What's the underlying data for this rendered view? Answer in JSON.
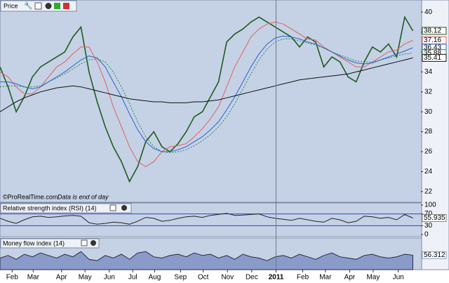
{
  "chart_data": [
    {
      "type": "line",
      "title": "Price",
      "annotations": [
        "©ProRealTime.com",
        "Data is end of day"
      ],
      "xlim": [
        0,
        52
      ],
      "xticks": [
        {
          "value": 1.5,
          "label": "Feb"
        },
        {
          "value": 4.1,
          "label": "Mar"
        },
        {
          "value": 7.6,
          "label": "Apr"
        },
        {
          "value": 10.5,
          "label": "May"
        },
        {
          "value": 13.5,
          "label": "Jun"
        },
        {
          "value": 16.4,
          "label": "Jul"
        },
        {
          "value": 19.1,
          "label": "Aug"
        },
        {
          "value": 22.3,
          "label": "Sep"
        },
        {
          "value": 25.1,
          "label": "Oct"
        },
        {
          "value": 28.1,
          "label": "Nov"
        },
        {
          "value": 31.1,
          "label": "Dec"
        },
        {
          "value": 34.1,
          "label": "2011"
        },
        {
          "value": 37.4,
          "label": "Feb"
        },
        {
          "value": 40.2,
          "label": "Mar"
        },
        {
          "value": 43.2,
          "label": "Apr"
        },
        {
          "value": 46.1,
          "label": "May"
        },
        {
          "value": 49.2,
          "label": "Jun"
        }
      ],
      "ylim": [
        21,
        41
      ],
      "yticks": [
        22,
        24,
        26,
        28,
        30,
        32,
        34,
        36,
        38,
        40
      ],
      "series": [
        {
          "color": "#1f5a1f",
          "values": [
            34.5,
            32.5,
            30,
            31.5,
            33.5,
            34.5,
            35,
            35.5,
            36,
            37.5,
            38.5,
            34,
            31,
            28.5,
            26.5,
            25,
            23,
            24.5,
            27,
            28,
            26.5,
            26,
            26.8,
            28,
            29.5,
            30,
            31.5,
            33,
            37,
            37.8,
            38.3,
            39,
            39.5,
            39,
            38.5,
            38,
            37.5,
            36.5,
            37.5,
            37,
            34.5,
            35.5,
            35,
            33.5,
            33,
            35,
            36.5,
            36,
            36.8,
            35.5,
            39.5,
            38.12
          ]
        },
        {
          "color": "#e06060",
          "values": [
            34,
            33.5,
            32.5,
            31.8,
            31.8,
            32.5,
            33.5,
            34.5,
            35,
            35.8,
            36.5,
            36.5,
            35,
            33,
            30.5,
            28.5,
            26.5,
            25,
            24.5,
            25,
            26,
            26.5,
            26.6,
            26.8,
            27.5,
            28.3,
            29.3,
            30.5,
            32.5,
            34.5,
            36,
            37.5,
            38.3,
            38.8,
            39,
            38.8,
            38.3,
            37.8,
            37.3,
            37.2,
            36.5,
            36,
            35.5,
            35,
            34.5,
            34.5,
            35,
            35.5,
            36,
            36.2,
            36.8,
            37.16
          ]
        },
        {
          "color": "#2f5fd0",
          "values": [
            33,
            33,
            32.8,
            32.5,
            32.3,
            32.5,
            33,
            33.5,
            34,
            34.6,
            35.2,
            35.6,
            35.4,
            34.5,
            33,
            31.5,
            29.8,
            28.2,
            27,
            26.3,
            26,
            26,
            26.2,
            26.5,
            27,
            27.5,
            28.2,
            29,
            30.2,
            31.5,
            33,
            34.5,
            35.8,
            36.8,
            37.4,
            37.6,
            37.5,
            37.3,
            37,
            36.8,
            36.4,
            36,
            35.6,
            35.2,
            34.9,
            34.8,
            34.9,
            35.2,
            35.5,
            35.8,
            36.1,
            36.43
          ]
        },
        {
          "color": "#1e8a4a",
          "values": [
            32.5,
            32.6,
            32.6,
            32.5,
            32.5,
            32.6,
            33,
            33.4,
            33.8,
            34.3,
            34.8,
            35.2,
            35.3,
            35,
            34,
            32.5,
            30.8,
            29,
            27.5,
            26.5,
            26,
            25.9,
            26,
            26.2,
            26.6,
            27.1,
            27.7,
            28.5,
            29.5,
            30.8,
            32.3,
            33.8,
            35.2,
            36.3,
            37,
            37.3,
            37.3,
            37.1,
            36.9,
            36.7,
            36.4,
            36,
            35.7,
            35.4,
            35.1,
            35,
            35,
            35.2,
            35.4,
            35.6,
            35.8,
            35.88
          ]
        },
        {
          "color": "#111111",
          "values": [
            30,
            30.5,
            31,
            31.4,
            31.7,
            32,
            32.2,
            32.4,
            32.5,
            32.6,
            32.5,
            32.3,
            32.1,
            31.9,
            31.7,
            31.5,
            31.3,
            31.2,
            31.1,
            31,
            31,
            30.9,
            30.9,
            30.9,
            31,
            31,
            31.1,
            31.2,
            31.4,
            31.6,
            31.8,
            32,
            32.2,
            32.4,
            32.6,
            32.8,
            33,
            33.2,
            33.3,
            33.4,
            33.5,
            33.6,
            33.7,
            33.8,
            34,
            34.2,
            34.4,
            34.6,
            34.8,
            35,
            35.2,
            35.41
          ]
        }
      ]
    },
    {
      "type": "line",
      "title": "Relative strength index (RSI) (14)",
      "ylim": [
        -7,
        107
      ],
      "yticks": [
        0,
        30,
        70,
        100
      ],
      "series": [
        {
          "color": "#222222",
          "values": [
            55,
            45,
            38,
            50,
            60,
            62,
            58,
            60,
            63,
            65,
            62,
            40,
            35,
            38,
            42,
            40,
            35,
            45,
            58,
            55,
            45,
            48,
            55,
            60,
            62,
            58,
            65,
            68,
            72,
            65,
            66,
            68,
            70,
            60,
            55,
            52,
            48,
            55,
            50,
            45,
            42,
            55,
            50,
            40,
            45,
            62,
            60,
            55,
            58,
            50,
            68,
            55.935
          ]
        }
      ]
    },
    {
      "type": "area",
      "title": "Money flow index (14)",
      "ylim": [
        0,
        120
      ],
      "series": [
        {
          "color": "#8b9bc9",
          "values": [
            45,
            55,
            40,
            60,
            50,
            65,
            55,
            45,
            60,
            50,
            70,
            40,
            35,
            55,
            45,
            60,
            40,
            65,
            70,
            50,
            45,
            55,
            60,
            50,
            65,
            55,
            60,
            45,
            55,
            40,
            60,
            50,
            45,
            35,
            50,
            55,
            45,
            60,
            50,
            40,
            55,
            65,
            50,
            45,
            40,
            55,
            60,
            50,
            45,
            50,
            60,
            56.312
          ]
        }
      ]
    }
  ]
}
